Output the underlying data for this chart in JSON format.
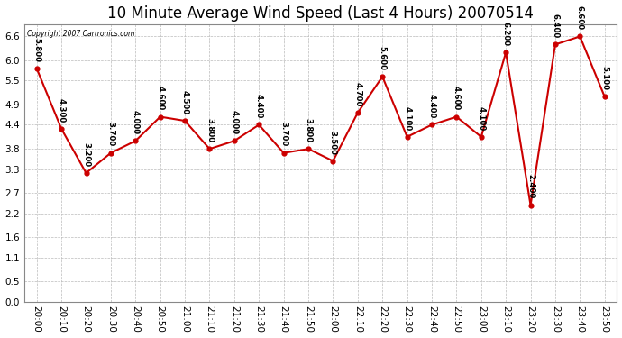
{
  "title": "10 Minute Average Wind Speed (Last 4 Hours) 20070514",
  "copyright": "Copyright 2007 Cartronics.com",
  "x_labels": [
    "20:00",
    "20:10",
    "20:20",
    "20:30",
    "20:40",
    "20:50",
    "21:00",
    "21:10",
    "21:20",
    "21:30",
    "21:40",
    "21:50",
    "22:00",
    "22:10",
    "22:20",
    "22:30",
    "22:40",
    "22:50",
    "23:00",
    "23:10",
    "23:20",
    "23:30",
    "23:40",
    "23:50"
  ],
  "y_values": [
    5.8,
    4.3,
    3.2,
    3.7,
    4.0,
    4.6,
    4.5,
    3.8,
    4.0,
    4.4,
    3.7,
    3.8,
    3.5,
    4.7,
    5.6,
    4.1,
    4.4,
    4.6,
    4.1,
    6.2,
    2.4,
    6.4,
    6.6,
    5.1
  ],
  "line_color": "#cc0000",
  "marker_color": "#cc0000",
  "bg_color": "#ffffff",
  "grid_color": "#bbbbbb",
  "y_ticks": [
    0.0,
    0.5,
    1.1,
    1.6,
    2.2,
    2.7,
    3.3,
    3.8,
    4.4,
    4.9,
    5.5,
    6.0,
    6.6
  ],
  "ylim": [
    0.0,
    6.9
  ],
  "title_fontsize": 12,
  "label_fontsize": 7.5
}
